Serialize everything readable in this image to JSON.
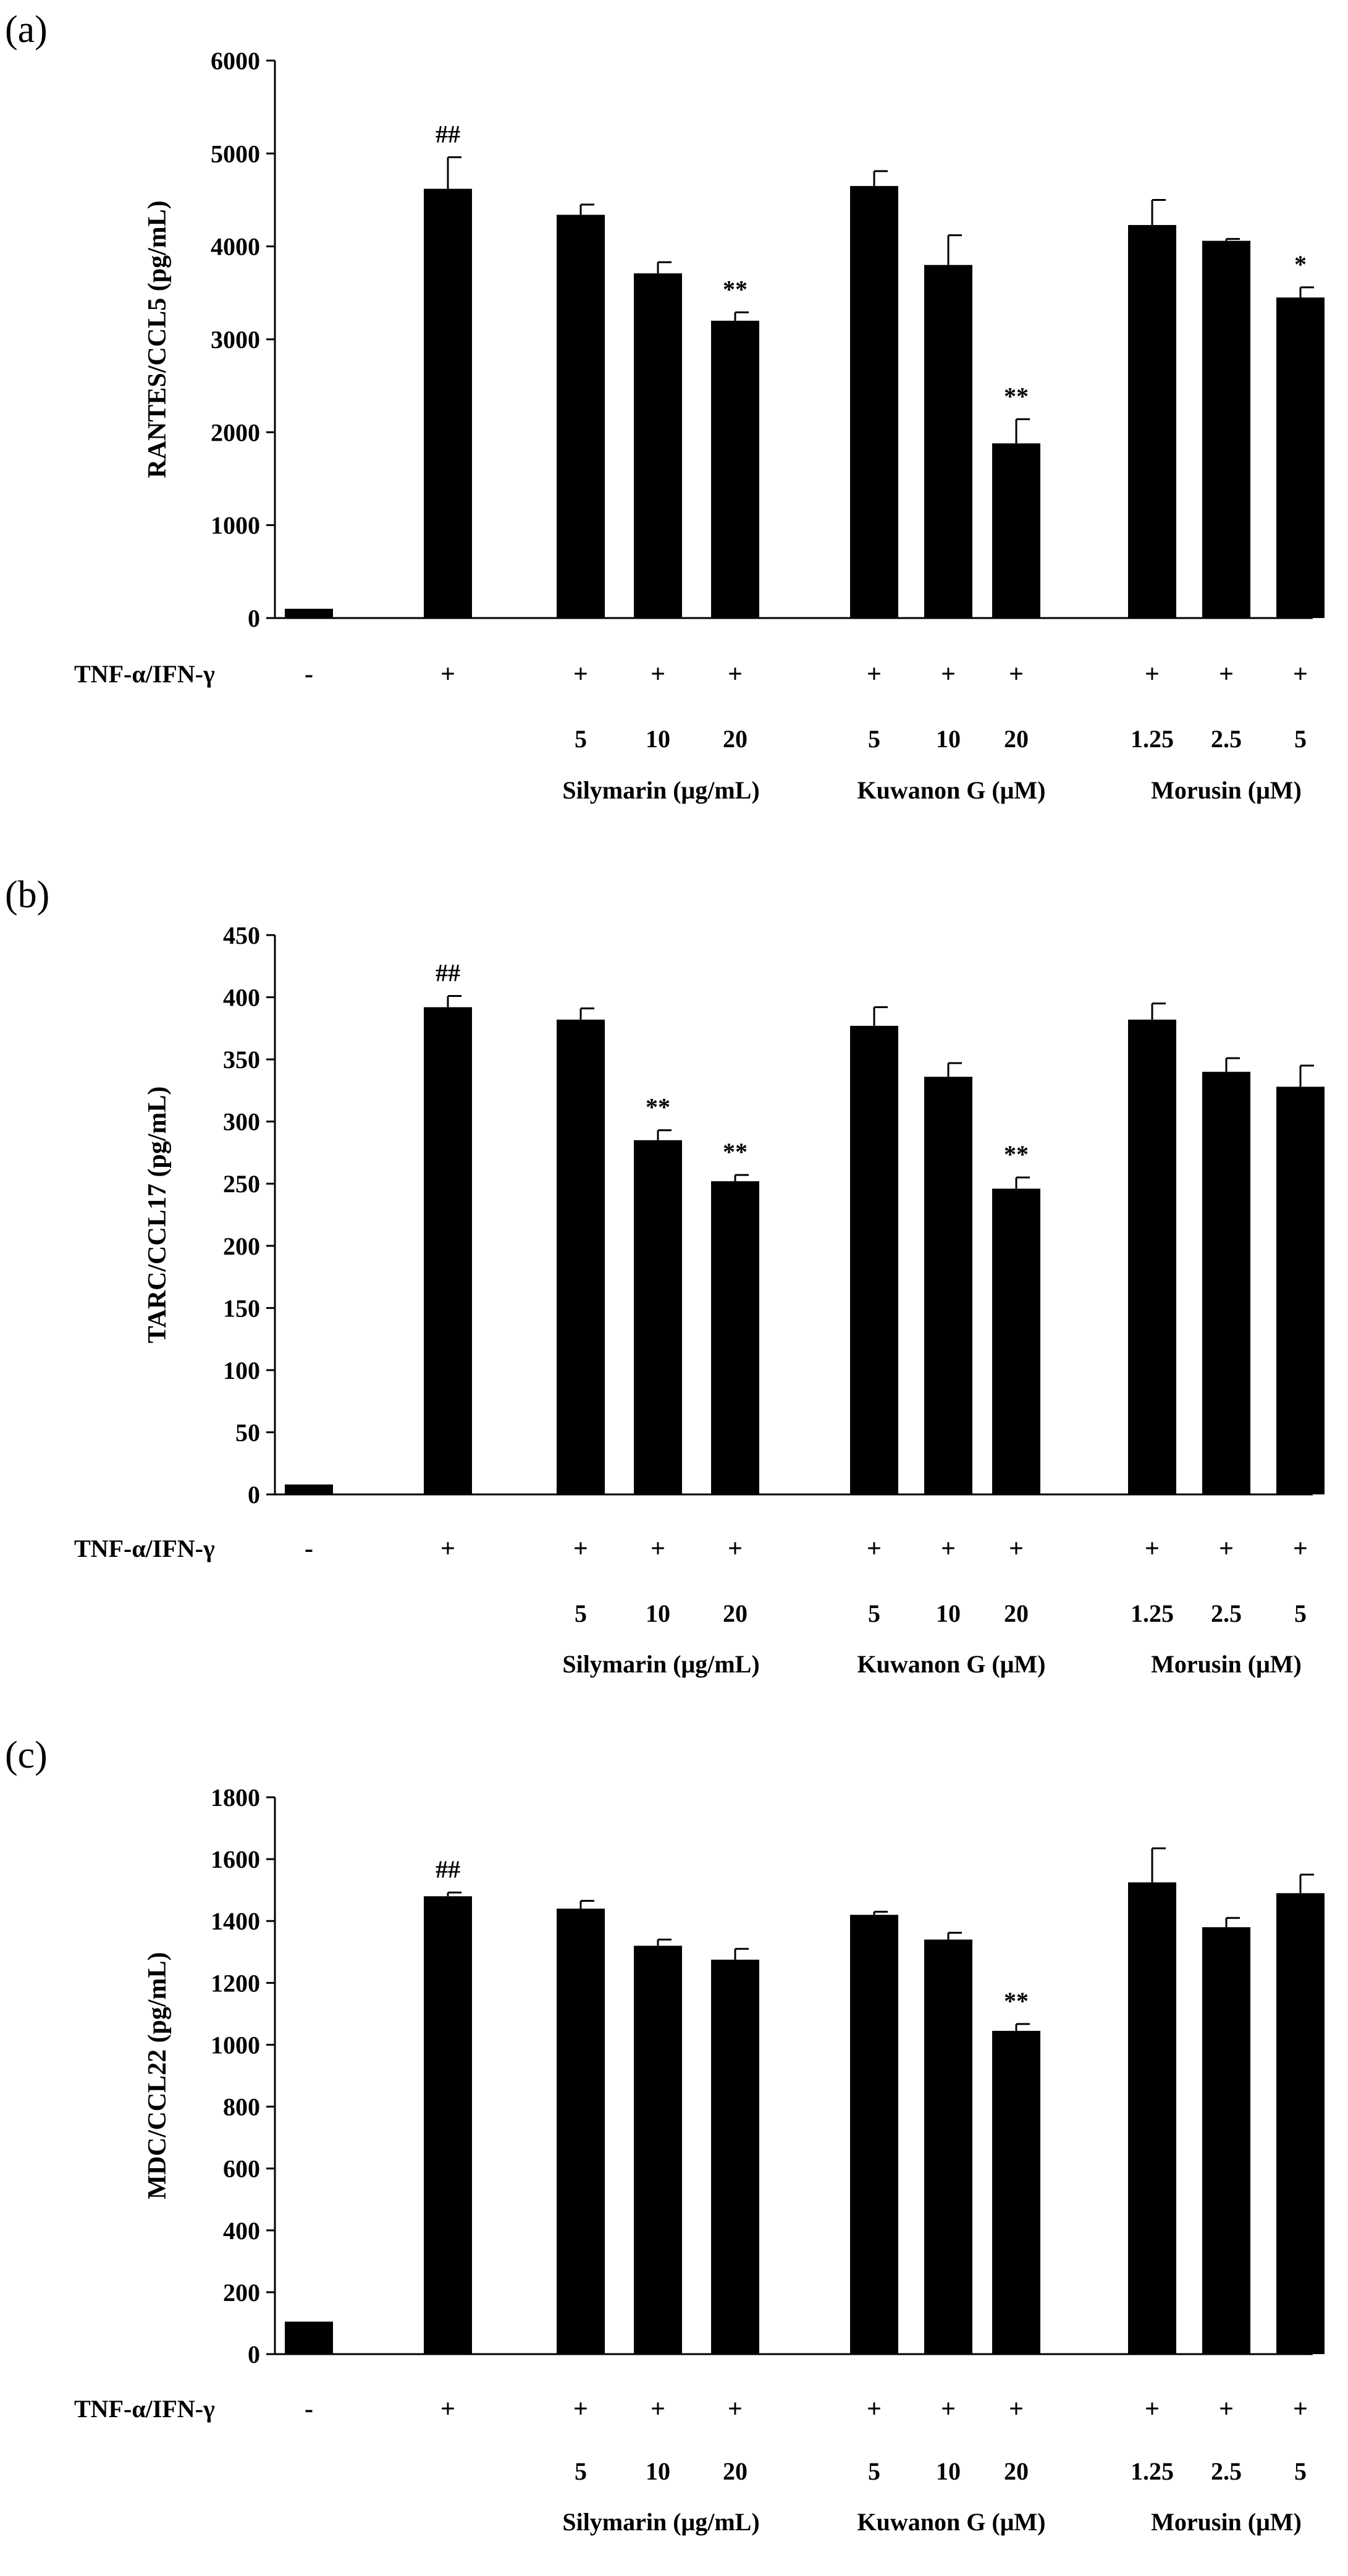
{
  "chart_data": [
    {
      "type": "bar",
      "panel_label": "(a)",
      "ylabel": "RANTES/CCL5 (pg/mL)",
      "ylim": [
        0,
        6000
      ],
      "yticks": [
        "0",
        "1000",
        "2000",
        "3000",
        "4000",
        "5000",
        "6000"
      ],
      "values": [
        100,
        4620,
        4340,
        3710,
        3200,
        4650,
        3800,
        1880,
        4230,
        4060,
        3450
      ],
      "errors": [
        0,
        340,
        110,
        120,
        90,
        160,
        320,
        260,
        270,
        20,
        110
      ],
      "annotations": [
        "",
        "##",
        "",
        "",
        "**",
        "",
        "",
        "**",
        "",
        "",
        "*"
      ],
      "treatment_label": "TNF-α/IFN-γ",
      "treatment_signs": [
        "-",
        "+",
        "+",
        "+",
        "+",
        "+",
        "+",
        "+",
        "+",
        "+",
        "+"
      ],
      "dose_labels": [
        "",
        "",
        "5",
        "10",
        "20",
        "5",
        "10",
        "20",
        "1.25",
        "2.5",
        "5"
      ],
      "groups": [
        "Silymarin (μg/mL)",
        "Kuwanon G (μM)",
        "Morusin (μM)"
      ]
    },
    {
      "type": "bar",
      "panel_label": "(b)",
      "ylabel": "TARC/CCL17 (pg/mL)",
      "ylim": [
        0,
        450
      ],
      "yticks": [
        "0",
        "50",
        "100",
        "150",
        "200",
        "250",
        "300",
        "350",
        "400",
        "450"
      ],
      "values": [
        8,
        392,
        382,
        285,
        252,
        377,
        336,
        246,
        382,
        340,
        328
      ],
      "errors": [
        0,
        9,
        9,
        8,
        5,
        15,
        11,
        9,
        13,
        11,
        17
      ],
      "annotations": [
        "",
        "##",
        "",
        "**",
        "**",
        "",
        "",
        "**",
        "",
        "",
        ""
      ],
      "treatment_label": "TNF-α/IFN-γ",
      "treatment_signs": [
        "-",
        "+",
        "+",
        "+",
        "+",
        "+",
        "+",
        "+",
        "+",
        "+",
        "+"
      ],
      "dose_labels": [
        "",
        "",
        "5",
        "10",
        "20",
        "5",
        "10",
        "20",
        "1.25",
        "2.5",
        "5"
      ],
      "groups": [
        "Silymarin (μg/mL)",
        "Kuwanon G (μM)",
        "Morusin (μM)"
      ]
    },
    {
      "type": "bar",
      "panel_label": "(c)",
      "ylabel": "MDC/CCL22 (pg/mL)",
      "ylim": [
        0,
        1800
      ],
      "yticks": [
        "0",
        "200",
        "400",
        "600",
        "800",
        "1000",
        "1200",
        "1400",
        "1600",
        "1800"
      ],
      "values": [
        105,
        1480,
        1440,
        1320,
        1275,
        1420,
        1340,
        1045,
        1525,
        1380,
        1490
      ],
      "errors": [
        0,
        12,
        25,
        20,
        35,
        10,
        22,
        22,
        110,
        30,
        60
      ],
      "annotations": [
        "",
        "##",
        "",
        "",
        "",
        "",
        "",
        "**",
        "",
        "",
        ""
      ],
      "treatment_label": "TNF-α/IFN-γ",
      "treatment_signs": [
        "-",
        "+",
        "+",
        "+",
        "+",
        "+",
        "+",
        "+",
        "+",
        "+",
        "+"
      ],
      "dose_labels": [
        "",
        "",
        "5",
        "10",
        "20",
        "5",
        "10",
        "20",
        "1.25",
        "2.5",
        "5"
      ],
      "groups": [
        "Silymarin (μg/mL)",
        "Kuwanon G (μM)",
        "Morusin (μM)"
      ]
    }
  ]
}
